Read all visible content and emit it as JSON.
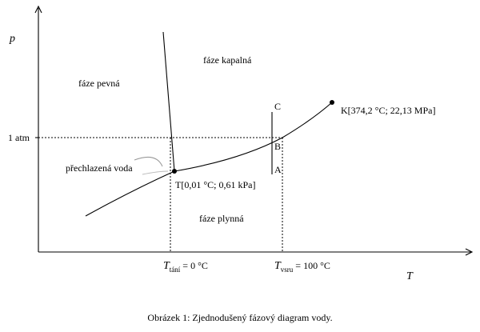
{
  "axes": {
    "y_label": "p",
    "x_label": "T",
    "y_tick": "1 atm",
    "x_ticks": [
      {
        "symbol": "T",
        "subscript": "tání",
        "rest": "= 0 °C"
      },
      {
        "symbol": "T",
        "subscript": "vsru",
        "rest": "= 100 °C"
      }
    ]
  },
  "regions": {
    "solid": "fáze pevná",
    "liquid": "fáze kapalná",
    "gas": "fáze plynná"
  },
  "points": {
    "triple": "T[0,01 °C; 0,61 kPa]",
    "critical": "K[374,2 °C; 22,13 MPa]"
  },
  "annotation": "přechlazená voda",
  "path_points": [
    "C",
    "B",
    "A"
  ],
  "caption": "Obrázek 1: Zjednodušený fázový diagram vody."
}
